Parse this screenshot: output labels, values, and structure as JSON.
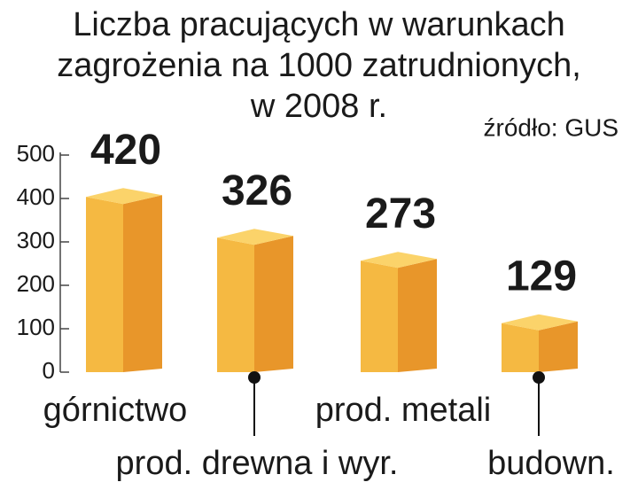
{
  "chart_data": {
    "type": "bar3d",
    "title": [
      "Liczba pracujących w warunkach",
      "zagrożenia na 1000 zatrudnionych,",
      "w 2008 r."
    ],
    "source": "źródło: GUS",
    "categories": [
      "górnictwo",
      "prod. drewna i wyr.",
      "prod. metali",
      "budown."
    ],
    "values": [
      420,
      326,
      273,
      129
    ],
    "value_label_colors": [
      "#c8102e",
      "#1a1a1a",
      "#1a1a1a",
      "#1a1a1a"
    ],
    "colors": {
      "front": "#f5b942",
      "side": "#e8962a",
      "top": "#fbd36a"
    },
    "ylim": [
      0,
      500
    ],
    "yticks": [
      0,
      100,
      200,
      300,
      400,
      500
    ]
  }
}
